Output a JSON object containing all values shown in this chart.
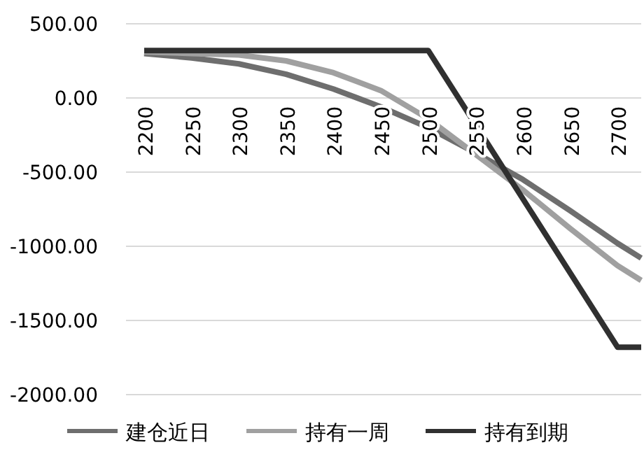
{
  "chart_data": {
    "type": "line",
    "x": [
      2200,
      2250,
      2300,
      2350,
      2400,
      2450,
      2500,
      2550,
      2600,
      2650,
      2700,
      2725
    ],
    "xlim": [
      2200,
      2725
    ],
    "xticks": [
      2200,
      2250,
      2300,
      2350,
      2400,
      2450,
      2500,
      2550,
      2600,
      2650,
      2700
    ],
    "ylim": [
      -2000,
      500
    ],
    "yticks": [
      {
        "value": 500,
        "label": "500.00"
      },
      {
        "value": 0,
        "label": "0.00"
      },
      {
        "value": -500,
        "label": "-500.00"
      },
      {
        "value": -1000,
        "label": "-1000.00"
      },
      {
        "value": -1500,
        "label": "-1500.00"
      },
      {
        "value": -2000,
        "label": "-2000.00"
      }
    ],
    "grid": "y",
    "legend": "bottom",
    "marker": "none",
    "line_style": "solid",
    "series": [
      {
        "name": "建仓近日",
        "color": "#6e6e6e",
        "values": [
          300,
          270,
          230,
          160,
          60,
          -60,
          -200,
          -370,
          -550,
          -760,
          -980,
          -1080
        ]
      },
      {
        "name": "持有一周",
        "color": "#a0a0a0",
        "values": [
          310,
          300,
          290,
          250,
          170,
          50,
          -140,
          -380,
          -620,
          -880,
          -1130,
          -1230
        ]
      },
      {
        "name": "持有到期",
        "color": "#303030",
        "values": [
          320,
          320,
          320,
          320,
          320,
          320,
          320,
          -180,
          -680,
          -1180,
          -1680,
          -1680
        ]
      }
    ]
  }
}
